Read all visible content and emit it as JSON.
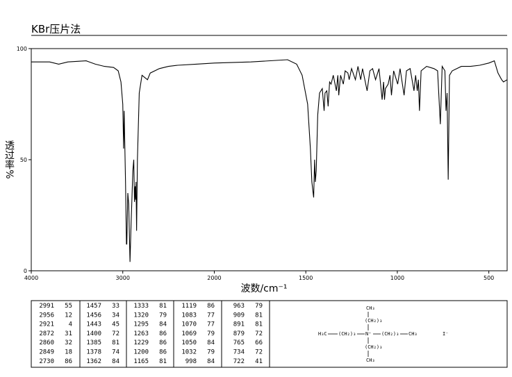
{
  "chart_data": {
    "type": "line",
    "title": "KBr压片法",
    "ylabel": "透过率%",
    "xlabel": "波数/cm⁻¹",
    "xlim": [
      4000,
      400
    ],
    "x_scale_break": 2000,
    "xticks": [
      4000,
      3000,
      2000,
      1500,
      1000,
      500
    ],
    "ylim": [
      0,
      100
    ],
    "yticks": [
      0,
      50,
      100
    ],
    "color": "#000000",
    "x": [
      4000,
      3800,
      3700,
      3600,
      3400,
      3300,
      3200,
      3100,
      3050,
      3020,
      3000,
      2991,
      2985,
      2970,
      2960,
      2956,
      2945,
      2935,
      2921,
      2910,
      2890,
      2880,
      2872,
      2865,
      2860,
      2855,
      2849,
      2840,
      2820,
      2790,
      2730,
      2700,
      2600,
      2500,
      2400,
      2200,
      2000,
      1800,
      1600,
      1550,
      1520,
      1490,
      1475,
      1467,
      1460,
      1457,
      1452,
      1448,
      1443,
      1435,
      1425,
      1410,
      1400,
      1395,
      1385,
      1378,
      1370,
      1362,
      1350,
      1333,
      1325,
      1320,
      1310,
      1295,
      1285,
      1270,
      1263,
      1250,
      1229,
      1215,
      1200,
      1190,
      1165,
      1150,
      1135,
      1119,
      1100,
      1083,
      1075,
      1070,
      1065,
      1050,
      1040,
      1032,
      1020,
      998,
      985,
      963,
      950,
      930,
      909,
      900,
      891,
      885,
      879,
      870,
      840,
      800,
      780,
      765,
      755,
      740,
      734,
      728,
      722,
      715,
      700,
      650,
      600,
      550,
      500,
      470,
      450,
      430,
      420,
      400
    ],
    "series": [
      {
        "values": [
          94,
          94,
          93,
          94,
          94.5,
          93,
          92,
          91.5,
          90,
          85,
          75,
          55,
          72,
          40,
          12,
          12,
          35,
          30,
          4,
          20,
          45,
          50,
          31,
          38,
          32,
          40,
          18,
          50,
          80,
          88,
          86,
          89,
          91,
          92,
          92.5,
          93,
          93.5,
          94,
          95,
          93,
          88,
          75,
          55,
          40,
          35,
          33,
          50,
          40,
          45,
          70,
          80,
          82,
          72,
          80,
          81,
          74,
          85,
          84,
          88,
          81,
          88,
          79,
          88,
          84,
          90,
          89,
          86,
          91,
          86,
          92,
          86,
          91,
          81,
          90,
          91,
          86,
          91,
          77,
          85,
          77,
          82,
          84,
          88,
          79,
          90,
          84,
          91,
          79,
          90,
          91,
          81,
          88,
          81,
          86,
          72,
          90,
          92,
          91,
          90,
          66,
          92,
          90,
          72,
          80,
          41,
          88,
          90,
          92,
          92,
          92.5,
          93.5,
          94.5,
          89,
          86,
          85,
          86
        ]
      }
    ]
  },
  "peak_table": [
    [
      [
        2991,
        55
      ],
      [
        2956,
        12
      ],
      [
        2921,
        4
      ],
      [
        2872,
        31
      ],
      [
        2860,
        32
      ],
      [
        2849,
        18
      ],
      [
        2730,
        86
      ]
    ],
    [
      [
        1457,
        33
      ],
      [
        1456,
        34
      ],
      [
        1443,
        45
      ],
      [
        1400,
        72
      ],
      [
        1385,
        81
      ],
      [
        1378,
        74
      ],
      [
        1362,
        84
      ]
    ],
    [
      [
        1333,
        81
      ],
      [
        1320,
        79
      ],
      [
        1295,
        84
      ],
      [
        1263,
        86
      ],
      [
        1229,
        86
      ],
      [
        1200,
        86
      ],
      [
        1165,
        81
      ]
    ],
    [
      [
        1119,
        86
      ],
      [
        1083,
        77
      ],
      [
        1070,
        77
      ],
      [
        1069,
        79
      ],
      [
        1050,
        84
      ],
      [
        1032,
        79
      ],
      [
        998,
        84
      ]
    ],
    [
      [
        963,
        79
      ],
      [
        909,
        81
      ],
      [
        891,
        81
      ],
      [
        879,
        72
      ],
      [
        765,
        66
      ],
      [
        734,
        72
      ],
      [
        722,
        41
      ]
    ]
  ],
  "structure": {
    "top_methyl": "CH₃",
    "top_chain": "(CH₂)₃",
    "left_methyl": "H₃C",
    "left_chain": "(CH₂)₃",
    "center": "N⁺",
    "right_chain": "(CH₂)₃",
    "right_methyl": "CH₃",
    "bottom_chain": "(CH₂)₃",
    "bottom_methyl": "CH₃",
    "anion": "I⁻"
  }
}
